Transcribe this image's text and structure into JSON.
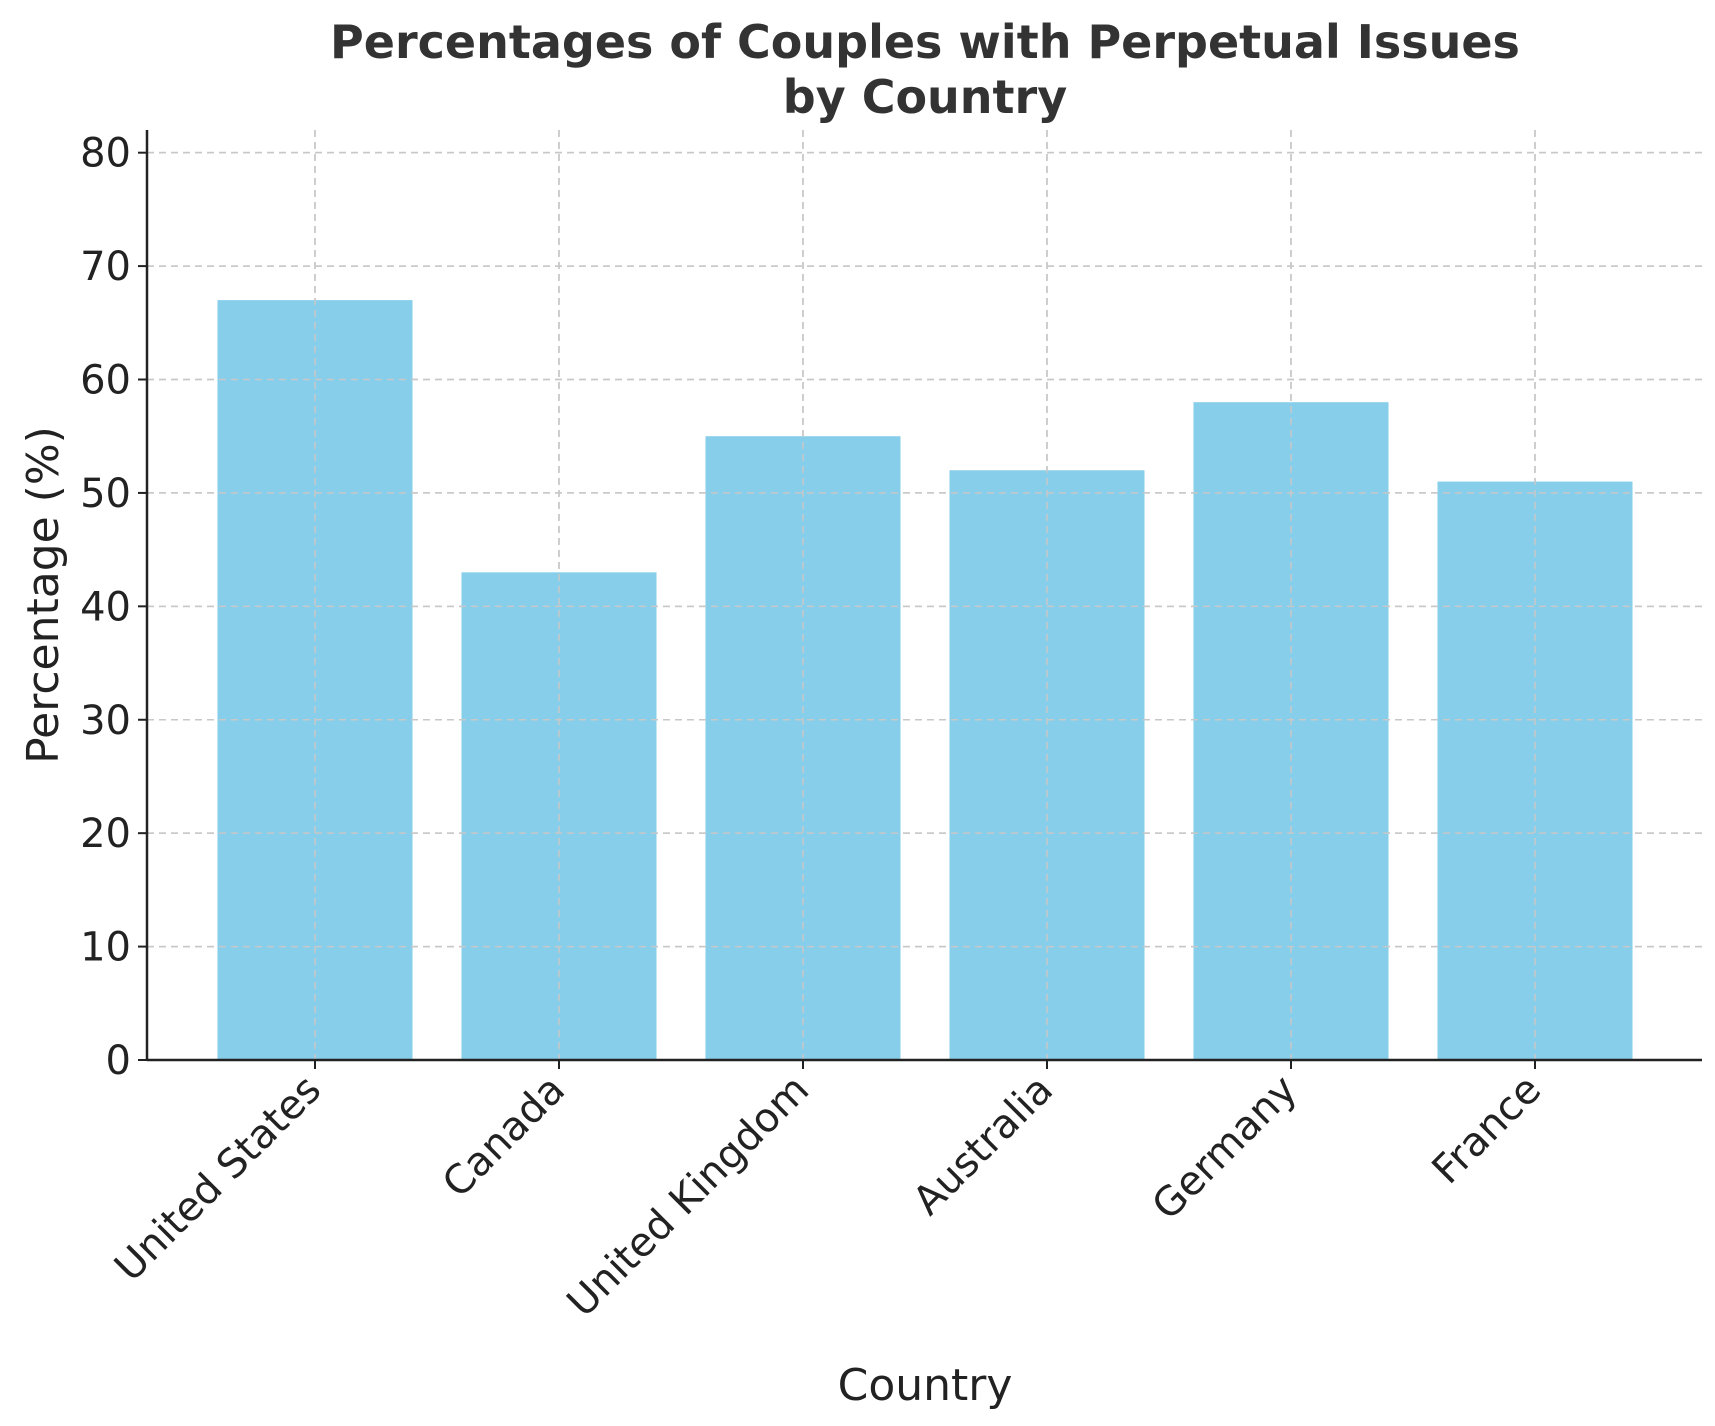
{
  "chart_data": {
    "type": "bar",
    "title_lines": [
      "Percentages of Couples with Perpetual Issues",
      "by Country"
    ],
    "xlabel": "Country",
    "ylabel": "Percentage (%)",
    "categories": [
      "United States",
      "Canada",
      "United Kingdom",
      "Australia",
      "Germany",
      "France"
    ],
    "values": [
      67,
      43,
      55,
      52,
      58,
      51
    ],
    "ylim": [
      0,
      82
    ],
    "yticks": [
      0,
      10,
      20,
      30,
      40,
      50,
      60,
      70,
      80
    ],
    "bar_color": "#87CEEB",
    "grid": true,
    "grid_style": "dashed",
    "legend": "none"
  }
}
